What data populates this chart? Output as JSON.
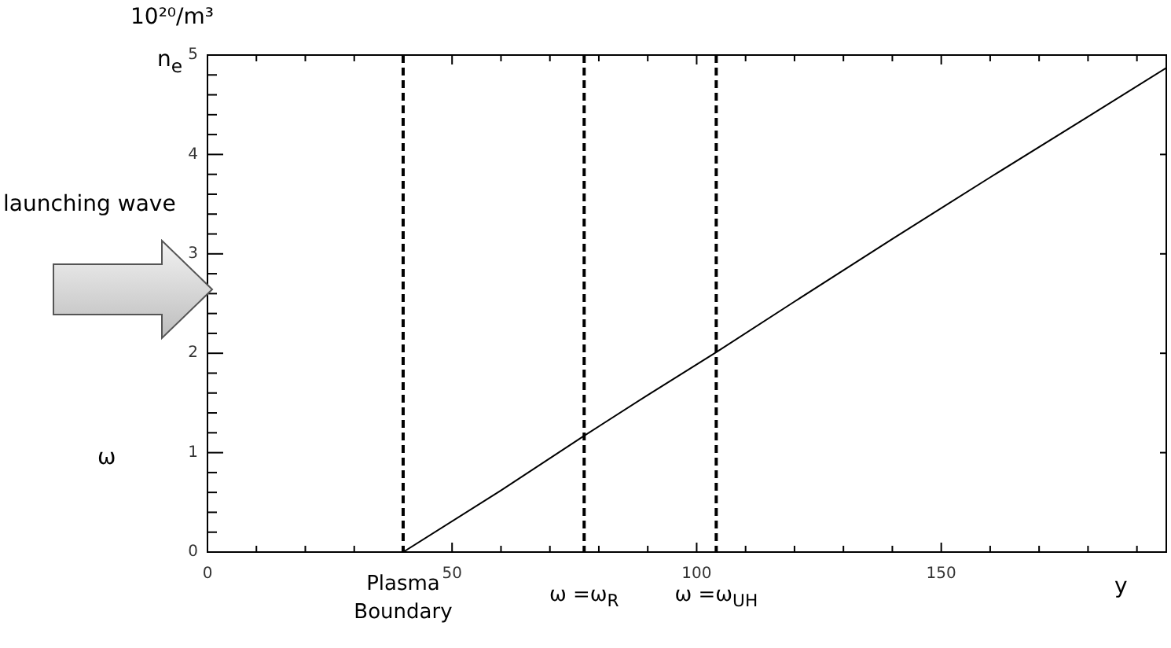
{
  "chart_data": {
    "type": "line",
    "xlabel": "y",
    "ylabel": "n$_{e}$",
    "annotations": [
      "10²⁰/m³",
      "launching wave",
      "ω"
    ],
    "x": [
      40,
      60,
      77,
      90,
      104,
      120,
      140,
      160,
      180,
      196
    ],
    "series": [
      {
        "color": "#000000",
        "values": [
          0,
          0.62,
          1.17,
          1.58,
          2.01,
          2.52,
          3.15,
          3.77,
          4.38,
          4.87
        ]
      }
    ],
    "xlim": [
      0,
      196
    ],
    "xticks": [
      0,
      {
        "value": 10,
        "label": null
      },
      {
        "value": 20,
        "label": null
      },
      {
        "value": 30,
        "label": null
      },
      {
        "value": 40,
        "label": null
      },
      50,
      {
        "value": 60,
        "label": null
      },
      {
        "value": 70,
        "label": null
      },
      {
        "value": 80,
        "label": null
      },
      {
        "value": 90,
        "label": null
      },
      100,
      {
        "value": 110,
        "label": null
      },
      {
        "value": 120,
        "label": null
      },
      {
        "value": 130,
        "label": null
      },
      {
        "value": 140,
        "label": null
      },
      150,
      {
        "value": 160,
        "label": null
      },
      {
        "value": 170,
        "label": null
      },
      {
        "value": 180,
        "label": null
      },
      {
        "value": 190,
        "label": null
      }
    ],
    "ylim": [
      0,
      5
    ],
    "yticks": [
      0,
      {
        "value": 0.2,
        "label": null
      },
      {
        "value": 0.4,
        "label": null
      },
      {
        "value": 0.6,
        "label": null
      },
      {
        "value": 0.8,
        "label": null
      },
      1,
      {
        "value": 1.2,
        "label": null
      },
      {
        "value": 1.4,
        "label": null
      },
      {
        "value": 1.6,
        "label": null
      },
      {
        "value": 1.8,
        "label": null
      },
      2,
      {
        "value": 2.2,
        "label": null
      },
      {
        "value": 2.4,
        "label": null
      },
      {
        "value": 2.6,
        "label": null
      },
      {
        "value": 2.8,
        "label": null
      },
      3,
      {
        "value": 3.2,
        "label": null
      },
      {
        "value": 3.4,
        "label": null
      },
      {
        "value": 3.6,
        "label": null
      },
      {
        "value": 3.8,
        "label": null
      },
      4,
      {
        "value": 4.2,
        "label": null
      },
      {
        "value": 4.4,
        "label": null
      },
      {
        "value": 4.6,
        "label": null
      },
      {
        "value": 4.8,
        "label": null
      },
      5
    ],
    "ref_lines": [
      {
        "axis": "x",
        "value": 40,
        "label": "Plasma Boundary",
        "color": "#000000",
        "line_style": "dashed"
      },
      {
        "axis": "x",
        "value": 77,
        "label": "ω =ω$_{R}$",
        "color": "#000000",
        "line_style": "dashed"
      },
      {
        "axis": "x",
        "value": 104,
        "label": "ω =ω$_{UH}$",
        "color": "#000000",
        "line_style": "dashed"
      }
    ],
    "grid": false,
    "legend": false,
    "marker": "none",
    "line_style": "solid"
  }
}
